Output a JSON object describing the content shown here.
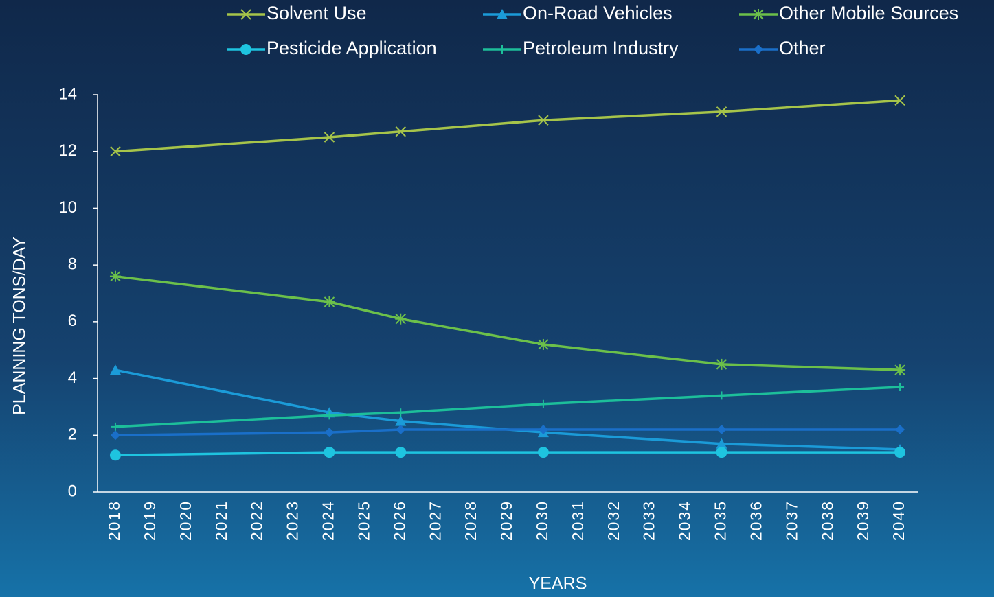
{
  "chart_data": {
    "type": "line",
    "x_label": "YEARS",
    "y_label": "PLANNING TONS/DAY",
    "x": [
      2018,
      2024,
      2026,
      2030,
      2035,
      2040
    ],
    "xlim": [
      2017.5,
      2040.5
    ],
    "xticks": [
      2018,
      2019,
      2020,
      2021,
      2022,
      2023,
      2024,
      2025,
      2026,
      2027,
      2028,
      2029,
      2030,
      2031,
      2032,
      2033,
      2034,
      2035,
      2036,
      2037,
      2038,
      2039,
      2040
    ],
    "ylim": [
      0,
      14
    ],
    "yticks": [
      0,
      2,
      4,
      6,
      8,
      10,
      12,
      14
    ],
    "legend": "top",
    "series": [
      {
        "name": "Solvent Use",
        "color": "#a6c44a",
        "marker": "x",
        "values": [
          12.0,
          12.5,
          12.7,
          13.1,
          13.4,
          13.8
        ]
      },
      {
        "name": "On-Road Vehicles",
        "color": "#1b9bd8",
        "marker": "triangle",
        "values": [
          4.3,
          2.8,
          2.5,
          2.1,
          1.7,
          1.5
        ]
      },
      {
        "name": "Other Mobile Sources",
        "color": "#6cc04a",
        "marker": "star",
        "values": [
          7.6,
          6.7,
          6.1,
          5.2,
          4.5,
          4.3
        ]
      },
      {
        "name": "Pesticide Application",
        "color": "#1ec4e0",
        "marker": "circle",
        "values": [
          1.3,
          1.4,
          1.4,
          1.4,
          1.4,
          1.4
        ]
      },
      {
        "name": "Petroleum Industry",
        "color": "#1dbf9a",
        "marker": "plus",
        "values": [
          2.3,
          2.7,
          2.8,
          3.1,
          3.4,
          3.7
        ]
      },
      {
        "name": "Other",
        "color": "#1a6fc9",
        "marker": "diamond",
        "values": [
          2.0,
          2.1,
          2.2,
          2.2,
          2.2,
          2.2
        ]
      }
    ]
  }
}
